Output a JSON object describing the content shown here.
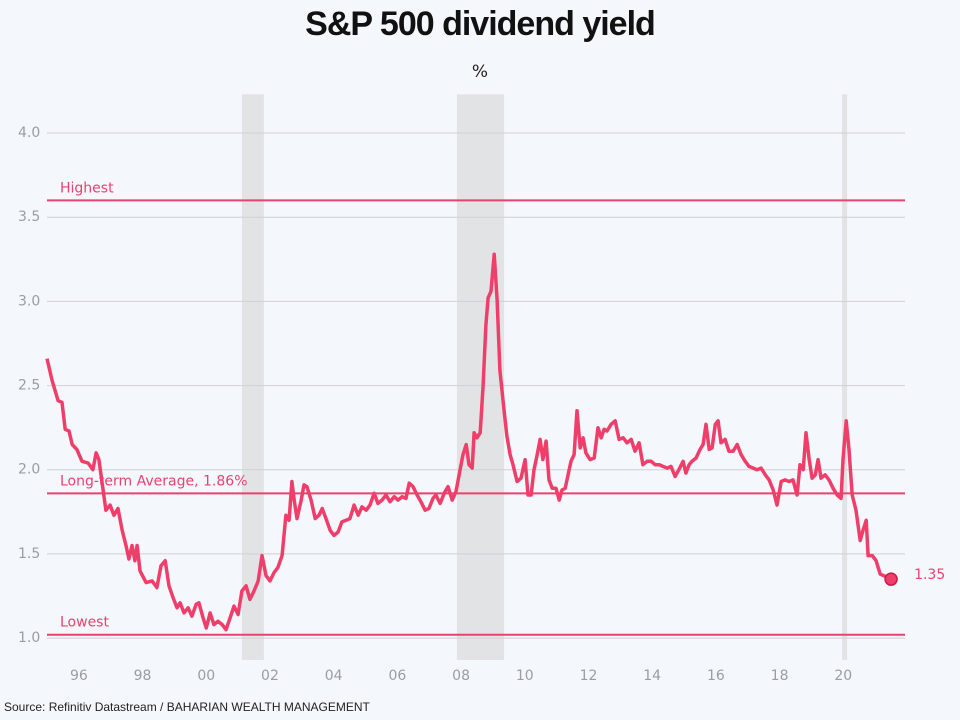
{
  "chart_data": {
    "type": "line",
    "title": "S&P 500 dividend yield",
    "subtitle": "%",
    "source": "Source: Refinitiv Datastream / BAHARIAN WEALTH MANAGEMENT",
    "color": "#f03e6a",
    "xlim": [
      1995,
      2022
    ],
    "ylim": [
      0.87,
      4.23
    ],
    "xticks": [
      {
        "value": 1996,
        "label": "96"
      },
      {
        "value": 1998,
        "label": "98"
      },
      {
        "value": 2000,
        "label": "00"
      },
      {
        "value": 2002,
        "label": "02"
      },
      {
        "value": 2004,
        "label": "04"
      },
      {
        "value": 2006,
        "label": "06"
      },
      {
        "value": 2008,
        "label": "08"
      },
      {
        "value": 2010,
        "label": "10"
      },
      {
        "value": 2012,
        "label": "12"
      },
      {
        "value": 2014,
        "label": "14"
      },
      {
        "value": 2016,
        "label": "16"
      },
      {
        "value": 2018,
        "label": "18"
      },
      {
        "value": 2020,
        "label": "20"
      }
    ],
    "yticks": [
      {
        "value": 1,
        "label": "1.0"
      },
      1.5,
      {
        "value": 2,
        "label": "2.0"
      },
      2.5,
      {
        "value": 3,
        "label": "3.0"
      },
      3.5,
      {
        "value": 4,
        "label": "4.0"
      }
    ],
    "grid": true,
    "shaded_ranges": [
      [
        2001.12,
        2001.81
      ],
      [
        2007.87,
        2009.35
      ],
      [
        2019.96,
        2020.12
      ]
    ],
    "reference_lines": [
      {
        "label": "Highest",
        "value": 3.6
      },
      {
        "label": "Long-term Average, 1.86%",
        "value": 1.86
      },
      {
        "label": "Lowest",
        "value": 1.02
      }
    ],
    "x": [
      1995.0,
      1995.16,
      1995.35,
      1995.47,
      1995.57,
      1995.69,
      1995.79,
      1995.94,
      1996.1,
      1996.29,
      1996.44,
      1996.54,
      1996.63,
      1996.76,
      1996.85,
      1996.98,
      1997.1,
      1997.23,
      1997.36,
      1997.48,
      1997.57,
      1997.67,
      1997.76,
      1997.83,
      1997.92,
      1998.11,
      1998.3,
      1998.45,
      1998.58,
      1998.71,
      1998.83,
      1998.96,
      1999.08,
      1999.18,
      1999.3,
      1999.43,
      1999.55,
      1999.68,
      1999.77,
      1999.9,
      2000.0,
      2000.12,
      2000.24,
      2000.37,
      2000.5,
      2000.62,
      2000.75,
      2000.87,
      2001.0,
      2001.12,
      2001.25,
      2001.37,
      2001.5,
      2001.63,
      2001.75,
      2001.88,
      2002.0,
      2002.13,
      2002.25,
      2002.38,
      2002.5,
      2002.6,
      2002.69,
      2002.76,
      2002.85,
      2002.98,
      2003.07,
      2003.16,
      2003.29,
      2003.42,
      2003.54,
      2003.64,
      2003.76,
      2003.89,
      2004.01,
      2004.14,
      2004.26,
      2004.39,
      2004.51,
      2004.64,
      2004.77,
      2004.89,
      2005.02,
      2005.14,
      2005.27,
      2005.39,
      2005.52,
      2005.64,
      2005.77,
      2005.9,
      2006.02,
      2006.15,
      2006.27,
      2006.37,
      2006.49,
      2006.62,
      2006.74,
      2006.87,
      2006.99,
      2007.12,
      2007.21,
      2007.34,
      2007.47,
      2007.59,
      2007.72,
      2007.84,
      2007.97,
      2008.06,
      2008.16,
      2008.25,
      2008.35,
      2008.41,
      2008.5,
      2008.6,
      2008.69,
      2008.78,
      2008.85,
      2008.94,
      2009.04,
      2009.13,
      2009.22,
      2009.35,
      2009.44,
      2009.54,
      2009.63,
      2009.76,
      2009.88,
      2010.01,
      2010.1,
      2010.2,
      2010.29,
      2010.39,
      2010.48,
      2010.57,
      2010.67,
      2010.76,
      2010.86,
      2010.98,
      2011.08,
      2011.17,
      2011.27,
      2011.36,
      2011.45,
      2011.55,
      2011.64,
      2011.74,
      2011.83,
      2011.92,
      2012.05,
      2012.18,
      2012.3,
      2012.4,
      2012.49,
      2012.58,
      2012.71,
      2012.84,
      2012.96,
      2013.09,
      2013.21,
      2013.34,
      2013.46,
      2013.59,
      2013.71,
      2013.84,
      2013.97,
      2014.09,
      2014.22,
      2014.34,
      2014.47,
      2014.59,
      2014.72,
      2014.84,
      2014.97,
      2015.06,
      2015.16,
      2015.25,
      2015.38,
      2015.5,
      2015.6,
      2015.69,
      2015.79,
      2015.88,
      2015.98,
      2016.07,
      2016.16,
      2016.29,
      2016.41,
      2016.54,
      2016.67,
      2016.79,
      2016.92,
      2017.04,
      2017.17,
      2017.29,
      2017.42,
      2017.55,
      2017.67,
      2017.8,
      2017.92,
      2018.05,
      2018.17,
      2018.3,
      2018.42,
      2018.55,
      2018.64,
      2018.74,
      2018.83,
      2018.93,
      2019.02,
      2019.12,
      2019.21,
      2019.3,
      2019.43,
      2019.55,
      2019.68,
      2019.81,
      2019.93,
      2019.99,
      2020.09,
      2020.18,
      2020.28,
      2020.4,
      2020.53,
      2020.62,
      2020.72,
      2020.78,
      2020.91,
      2021.03,
      2021.16,
      2021.28,
      2021.41,
      2021.5
    ],
    "values": [
      2.66,
      2.53,
      2.41,
      2.4,
      2.24,
      2.23,
      2.15,
      2.12,
      2.05,
      2.04,
      2.0,
      2.1,
      2.06,
      1.88,
      1.76,
      1.79,
      1.73,
      1.77,
      1.64,
      1.55,
      1.47,
      1.55,
      1.46,
      1.55,
      1.4,
      1.33,
      1.34,
      1.3,
      1.43,
      1.46,
      1.31,
      1.24,
      1.18,
      1.21,
      1.15,
      1.18,
      1.13,
      1.2,
      1.21,
      1.12,
      1.06,
      1.15,
      1.08,
      1.1,
      1.08,
      1.05,
      1.12,
      1.19,
      1.14,
      1.28,
      1.31,
      1.23,
      1.28,
      1.34,
      1.49,
      1.37,
      1.34,
      1.39,
      1.42,
      1.49,
      1.73,
      1.7,
      1.93,
      1.82,
      1.71,
      1.82,
      1.91,
      1.9,
      1.82,
      1.71,
      1.73,
      1.77,
      1.71,
      1.64,
      1.61,
      1.63,
      1.69,
      1.7,
      1.71,
      1.79,
      1.73,
      1.78,
      1.76,
      1.79,
      1.86,
      1.8,
      1.82,
      1.85,
      1.81,
      1.84,
      1.82,
      1.84,
      1.83,
      1.92,
      1.9,
      1.85,
      1.81,
      1.76,
      1.77,
      1.83,
      1.85,
      1.8,
      1.86,
      1.9,
      1.82,
      1.87,
      2.0,
      2.09,
      2.15,
      2.03,
      2.01,
      2.22,
      2.19,
      2.22,
      2.5,
      2.86,
      3.02,
      3.06,
      3.28,
      3.01,
      2.59,
      2.35,
      2.2,
      2.09,
      2.03,
      1.93,
      1.95,
      2.06,
      1.85,
      1.85,
      2.0,
      2.09,
      2.18,
      2.06,
      2.17,
      1.94,
      1.89,
      1.89,
      1.82,
      1.88,
      1.89,
      1.97,
      2.05,
      2.09,
      2.35,
      2.13,
      2.19,
      2.1,
      2.06,
      2.07,
      2.25,
      2.19,
      2.24,
      2.23,
      2.27,
      2.29,
      2.18,
      2.19,
      2.16,
      2.18,
      2.11,
      2.16,
      2.03,
      2.05,
      2.05,
      2.03,
      2.03,
      2.02,
      2.01,
      2.02,
      1.96,
      2.0,
      2.05,
      1.98,
      2.03,
      2.05,
      2.07,
      2.12,
      2.15,
      2.27,
      2.12,
      2.13,
      2.27,
      2.29,
      2.16,
      2.18,
      2.11,
      2.11,
      2.15,
      2.09,
      2.05,
      2.02,
      2.01,
      2.0,
      2.01,
      1.97,
      1.94,
      1.88,
      1.79,
      1.93,
      1.94,
      1.93,
      1.94,
      1.85,
      2.03,
      2.0,
      2.22,
      2.06,
      1.95,
      1.97,
      2.06,
      1.95,
      1.97,
      1.94,
      1.89,
      1.85,
      1.83,
      2.06,
      2.29,
      2.12,
      1.85,
      1.76,
      1.58,
      1.64,
      1.7,
      1.49,
      1.49,
      1.46,
      1.38,
      1.37,
      1.36,
      1.35
    ]
  }
}
